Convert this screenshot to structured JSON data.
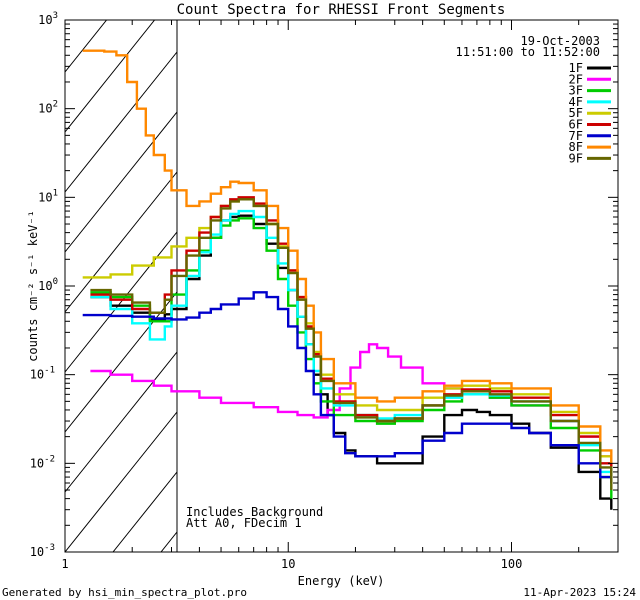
{
  "chart_data": {
    "type": "line",
    "title": "Count Spectra for RHESSI Front Segments",
    "xlabel": "Energy (keV)",
    "ylabel": "counts cm⁻² s⁻¹ keV⁻¹",
    "xscale": "log",
    "yscale": "log",
    "xlim": [
      1,
      300
    ],
    "ylim": [
      0.001,
      1000
    ],
    "x_tick_labels": [
      "1",
      "10",
      "100"
    ],
    "y_tick_labels": [
      {
        "base": "10",
        "exp": "-3"
      },
      {
        "base": "10",
        "exp": "-2"
      },
      {
        "base": "10",
        "exp": "-1"
      },
      {
        "base": "10",
        "exp": "0"
      },
      {
        "base": "10",
        "exp": "1"
      },
      {
        "base": "10",
        "exp": "2"
      },
      {
        "base": "10",
        "exp": "3"
      }
    ],
    "date": "19-Oct-2003",
    "time_range": "11:51:00 to 11:52:00",
    "annotations": [
      "Includes Background",
      "Att A0, FDecim 1"
    ],
    "shaded_region_kev": [
      1,
      3
    ],
    "legend_position": "top-right",
    "series": [
      {
        "name": "1F",
        "color": "#000000",
        "points": [
          [
            1.3,
            0.75
          ],
          [
            1.6,
            0.6
          ],
          [
            2.0,
            0.5
          ],
          [
            2.4,
            0.42
          ],
          [
            2.8,
            0.48
          ],
          [
            3.0,
            0.55
          ],
          [
            3.5,
            1.2
          ],
          [
            4.0,
            2.2
          ],
          [
            4.5,
            3.5
          ],
          [
            5.0,
            5.5
          ],
          [
            5.5,
            6.0
          ],
          [
            6.0,
            6.2
          ],
          [
            7.0,
            5.0
          ],
          [
            8.0,
            3.0
          ],
          [
            9.0,
            1.6
          ],
          [
            10,
            0.9
          ],
          [
            11,
            0.45
          ],
          [
            12,
            0.22
          ],
          [
            13,
            0.1
          ],
          [
            14,
            0.06
          ],
          [
            15,
            0.035
          ],
          [
            16,
            0.022
          ],
          [
            18,
            0.014
          ],
          [
            20,
            0.012
          ],
          [
            25,
            0.01
          ],
          [
            30,
            0.01
          ],
          [
            40,
            0.02
          ],
          [
            50,
            0.035
          ],
          [
            60,
            0.04
          ],
          [
            70,
            0.038
          ],
          [
            80,
            0.035
          ],
          [
            100,
            0.028
          ],
          [
            120,
            0.022
          ],
          [
            150,
            0.015
          ],
          [
            200,
            0.008
          ],
          [
            250,
            0.004
          ],
          [
            280,
            0.003
          ]
        ]
      },
      {
        "name": "2F",
        "color": "#ff00ff",
        "points": [
          [
            1.3,
            0.11
          ],
          [
            1.6,
            0.1
          ],
          [
            2.0,
            0.085
          ],
          [
            2.5,
            0.075
          ],
          [
            3.0,
            0.065
          ],
          [
            4.0,
            0.055
          ],
          [
            5.0,
            0.048
          ],
          [
            7.0,
            0.043
          ],
          [
            9.0,
            0.038
          ],
          [
            11,
            0.035
          ],
          [
            13,
            0.033
          ],
          [
            15,
            0.04
          ],
          [
            17,
            0.07
          ],
          [
            19,
            0.12
          ],
          [
            21,
            0.18
          ],
          [
            23,
            0.22
          ],
          [
            25,
            0.2
          ],
          [
            28,
            0.16
          ],
          [
            32,
            0.12
          ],
          [
            40,
            0.08
          ],
          [
            50,
            0.07
          ],
          [
            60,
            0.065
          ],
          [
            80,
            0.055
          ],
          [
            100,
            0.045
          ],
          [
            150,
            0.03
          ],
          [
            200,
            0.02
          ],
          [
            250,
            0.012
          ],
          [
            280,
            0.009
          ]
        ]
      },
      {
        "name": "3F",
        "color": "#00cc00",
        "points": [
          [
            1.3,
            0.85
          ],
          [
            1.6,
            0.75
          ],
          [
            2.0,
            0.6
          ],
          [
            2.4,
            0.4
          ],
          [
            2.8,
            0.4
          ],
          [
            3.0,
            0.8
          ],
          [
            3.5,
            1.5
          ],
          [
            4.0,
            2.5
          ],
          [
            4.5,
            3.5
          ],
          [
            5.0,
            4.8
          ],
          [
            5.5,
            5.5
          ],
          [
            6.0,
            5.8
          ],
          [
            7.0,
            4.5
          ],
          [
            8.0,
            2.5
          ],
          [
            9.0,
            1.2
          ],
          [
            10,
            0.6
          ],
          [
            11,
            0.3
          ],
          [
            12,
            0.15
          ],
          [
            13,
            0.08
          ],
          [
            14,
            0.05
          ],
          [
            16,
            0.035
          ],
          [
            20,
            0.03
          ],
          [
            25,
            0.028
          ],
          [
            30,
            0.03
          ],
          [
            40,
            0.04
          ],
          [
            50,
            0.05
          ],
          [
            60,
            0.06
          ],
          [
            80,
            0.055
          ],
          [
            100,
            0.045
          ],
          [
            150,
            0.025
          ],
          [
            200,
            0.014
          ],
          [
            250,
            0.007
          ],
          [
            280,
            0.004
          ]
        ]
      },
      {
        "name": "4F",
        "color": "#00ffff",
        "points": [
          [
            1.3,
            0.75
          ],
          [
            1.6,
            0.55
          ],
          [
            2.0,
            0.38
          ],
          [
            2.4,
            0.25
          ],
          [
            2.8,
            0.35
          ],
          [
            3.0,
            0.6
          ],
          [
            3.5,
            1.3
          ],
          [
            4.0,
            2.4
          ],
          [
            4.5,
            3.8
          ],
          [
            5.0,
            5.5
          ],
          [
            5.5,
            6.5
          ],
          [
            6.0,
            7.0
          ],
          [
            7.0,
            6.0
          ],
          [
            8.0,
            3.5
          ],
          [
            9.0,
            1.8
          ],
          [
            10,
            0.9
          ],
          [
            11,
            0.45
          ],
          [
            12,
            0.22
          ],
          [
            13,
            0.11
          ],
          [
            14,
            0.07
          ],
          [
            16,
            0.045
          ],
          [
            20,
            0.035
          ],
          [
            25,
            0.032
          ],
          [
            30,
            0.035
          ],
          [
            40,
            0.045
          ],
          [
            50,
            0.055
          ],
          [
            60,
            0.06
          ],
          [
            80,
            0.058
          ],
          [
            100,
            0.05
          ],
          [
            150,
            0.03
          ],
          [
            200,
            0.016
          ],
          [
            250,
            0.008
          ],
          [
            280,
            0.005
          ]
        ]
      },
      {
        "name": "5F",
        "color": "#cccc00",
        "points": [
          [
            1.2,
            1.25
          ],
          [
            1.6,
            1.35
          ],
          [
            2.0,
            1.7
          ],
          [
            2.5,
            2.1
          ],
          [
            3.0,
            2.8
          ],
          [
            3.5,
            3.5
          ],
          [
            4.0,
            4.5
          ],
          [
            4.5,
            6.0
          ],
          [
            5.0,
            8.0
          ],
          [
            5.5,
            9.0
          ],
          [
            6.0,
            9.5
          ],
          [
            7.0,
            8.0
          ],
          [
            8.0,
            5.0
          ],
          [
            9.0,
            2.8
          ],
          [
            10,
            1.5
          ],
          [
            11,
            0.75
          ],
          [
            12,
            0.38
          ],
          [
            13,
            0.18
          ],
          [
            14,
            0.1
          ],
          [
            16,
            0.06
          ],
          [
            20,
            0.045
          ],
          [
            25,
            0.04
          ],
          [
            30,
            0.04
          ],
          [
            40,
            0.055
          ],
          [
            50,
            0.07
          ],
          [
            60,
            0.075
          ],
          [
            80,
            0.07
          ],
          [
            100,
            0.06
          ],
          [
            150,
            0.038
          ],
          [
            200,
            0.022
          ],
          [
            250,
            0.012
          ],
          [
            280,
            0.008
          ]
        ]
      },
      {
        "name": "6F",
        "color": "#cc0000",
        "points": [
          [
            1.3,
            0.8
          ],
          [
            1.6,
            0.7
          ],
          [
            2.0,
            0.55
          ],
          [
            2.4,
            0.5
          ],
          [
            2.8,
            0.8
          ],
          [
            3.0,
            1.5
          ],
          [
            3.5,
            2.5
          ],
          [
            4.0,
            4.0
          ],
          [
            4.5,
            6.0
          ],
          [
            5.0,
            8.0
          ],
          [
            5.5,
            9.5
          ],
          [
            6.0,
            10
          ],
          [
            7.0,
            8.5
          ],
          [
            8.0,
            5.5
          ],
          [
            9.0,
            3.0
          ],
          [
            10,
            1.5
          ],
          [
            11,
            0.75
          ],
          [
            12,
            0.35
          ],
          [
            13,
            0.17
          ],
          [
            14,
            0.09
          ],
          [
            16,
            0.05
          ],
          [
            20,
            0.035
          ],
          [
            25,
            0.03
          ],
          [
            30,
            0.032
          ],
          [
            40,
            0.045
          ],
          [
            50,
            0.06
          ],
          [
            60,
            0.068
          ],
          [
            80,
            0.065
          ],
          [
            100,
            0.055
          ],
          [
            150,
            0.035
          ],
          [
            200,
            0.02
          ],
          [
            250,
            0.01
          ],
          [
            280,
            0.006
          ]
        ]
      },
      {
        "name": "7F",
        "color": "#0000cc",
        "points": [
          [
            1.2,
            0.47
          ],
          [
            1.6,
            0.46
          ],
          [
            2.0,
            0.45
          ],
          [
            2.5,
            0.43
          ],
          [
            3.0,
            0.42
          ],
          [
            3.5,
            0.44
          ],
          [
            4.0,
            0.5
          ],
          [
            4.5,
            0.55
          ],
          [
            5.0,
            0.62
          ],
          [
            6.0,
            0.72
          ],
          [
            7.0,
            0.85
          ],
          [
            8.0,
            0.75
          ],
          [
            9.0,
            0.55
          ],
          [
            10,
            0.35
          ],
          [
            11,
            0.2
          ],
          [
            12,
            0.11
          ],
          [
            13,
            0.06
          ],
          [
            14,
            0.035
          ],
          [
            16,
            0.02
          ],
          [
            18,
            0.013
          ],
          [
            20,
            0.012
          ],
          [
            25,
            0.012
          ],
          [
            30,
            0.013
          ],
          [
            40,
            0.018
          ],
          [
            50,
            0.022
          ],
          [
            60,
            0.028
          ],
          [
            80,
            0.028
          ],
          [
            100,
            0.025
          ],
          [
            120,
            0.022
          ],
          [
            150,
            0.016
          ],
          [
            200,
            0.01
          ],
          [
            250,
            0.007
          ],
          [
            280,
            0.006
          ]
        ]
      },
      {
        "name": "8F",
        "color": "#ff8800",
        "points": [
          [
            1.2,
            450
          ],
          [
            1.5,
            440
          ],
          [
            1.7,
            400
          ],
          [
            1.9,
            200
          ],
          [
            2.1,
            100
          ],
          [
            2.3,
            50
          ],
          [
            2.5,
            30
          ],
          [
            2.8,
            20
          ],
          [
            3.0,
            12
          ],
          [
            3.5,
            8
          ],
          [
            4.0,
            9
          ],
          [
            4.5,
            11
          ],
          [
            5.0,
            13
          ],
          [
            5.5,
            15
          ],
          [
            6.0,
            14.5
          ],
          [
            7.0,
            12
          ],
          [
            8.0,
            8.0
          ],
          [
            9.0,
            4.5
          ],
          [
            10,
            2.5
          ],
          [
            11,
            1.2
          ],
          [
            12,
            0.6
          ],
          [
            13,
            0.3
          ],
          [
            14,
            0.15
          ],
          [
            16,
            0.08
          ],
          [
            20,
            0.055
          ],
          [
            25,
            0.05
          ],
          [
            30,
            0.055
          ],
          [
            40,
            0.065
          ],
          [
            50,
            0.075
          ],
          [
            60,
            0.085
          ],
          [
            80,
            0.08
          ],
          [
            100,
            0.07
          ],
          [
            150,
            0.045
          ],
          [
            200,
            0.026
          ],
          [
            250,
            0.014
          ],
          [
            280,
            0.01
          ]
        ]
      },
      {
        "name": "9F",
        "color": "#666600",
        "points": [
          [
            1.3,
            0.9
          ],
          [
            1.6,
            0.8
          ],
          [
            2.0,
            0.65
          ],
          [
            2.4,
            0.5
          ],
          [
            2.8,
            0.7
          ],
          [
            3.0,
            1.3
          ],
          [
            3.5,
            2.2
          ],
          [
            4.0,
            3.5
          ],
          [
            4.5,
            5.5
          ],
          [
            5.0,
            7.5
          ],
          [
            5.5,
            9.0
          ],
          [
            6.0,
            9.5
          ],
          [
            7.0,
            8.0
          ],
          [
            8.0,
            5.0
          ],
          [
            9.0,
            2.7
          ],
          [
            10,
            1.4
          ],
          [
            11,
            0.7
          ],
          [
            12,
            0.33
          ],
          [
            13,
            0.16
          ],
          [
            14,
            0.085
          ],
          [
            16,
            0.048
          ],
          [
            20,
            0.033
          ],
          [
            25,
            0.03
          ],
          [
            30,
            0.032
          ],
          [
            40,
            0.045
          ],
          [
            50,
            0.058
          ],
          [
            60,
            0.065
          ],
          [
            80,
            0.06
          ],
          [
            100,
            0.05
          ],
          [
            150,
            0.03
          ],
          [
            200,
            0.017
          ],
          [
            250,
            0.009
          ],
          [
            280,
            0.005
          ]
        ]
      }
    ]
  },
  "footer": {
    "left": "Generated by hsi_min_spectra_plot.pro",
    "right": "11-Apr-2023 15:24"
  }
}
